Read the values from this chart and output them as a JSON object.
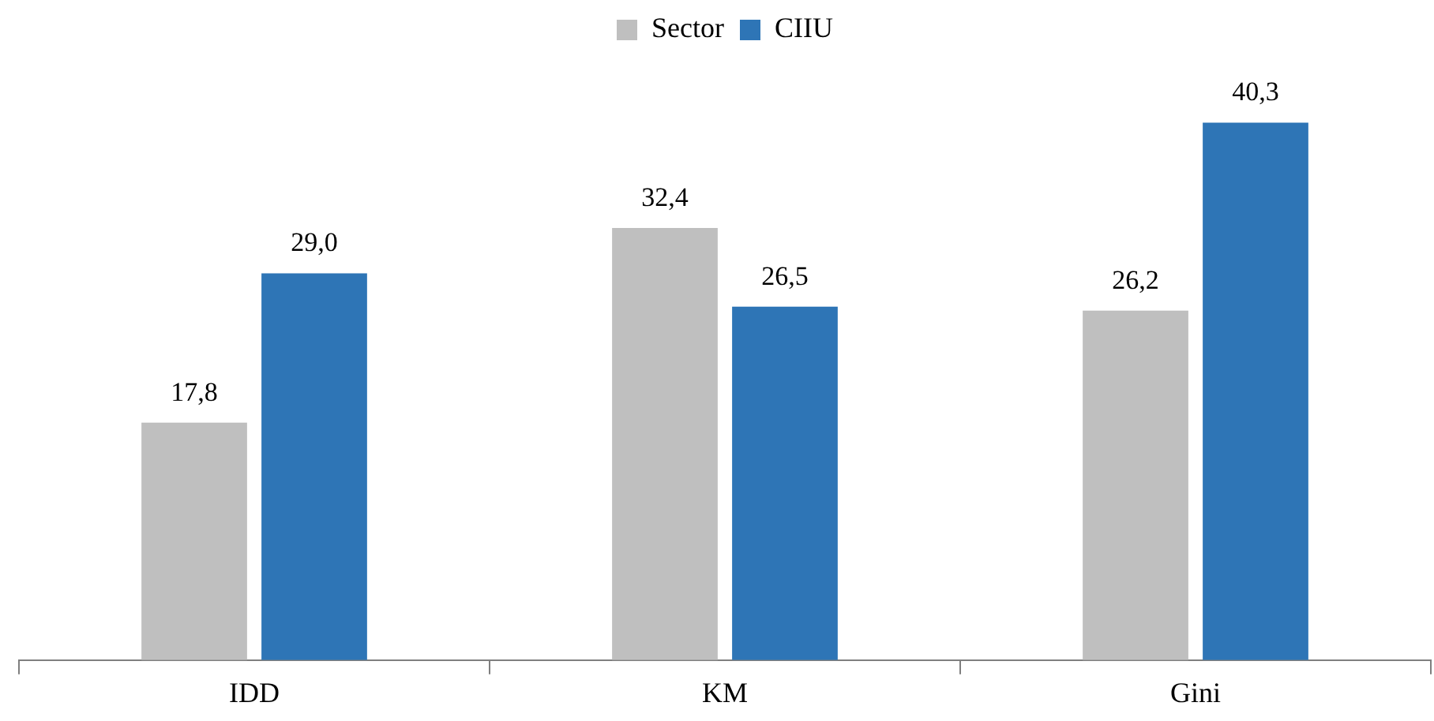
{
  "chart_data": {
    "type": "bar",
    "categories": [
      "IDD",
      "KM",
      "Gini"
    ],
    "series": [
      {
        "name": "Sector",
        "color": "#bfbfbf",
        "values": [
          17.8,
          32.4,
          26.2
        ],
        "value_labels": [
          "17,8",
          "32,4",
          "26,2"
        ]
      },
      {
        "name": "CIIU",
        "color": "#2e75b6",
        "values": [
          29.0,
          26.5,
          40.3
        ],
        "value_labels": [
          "29,0",
          "26,5",
          "40,3"
        ]
      }
    ],
    "legend": "top"
  }
}
